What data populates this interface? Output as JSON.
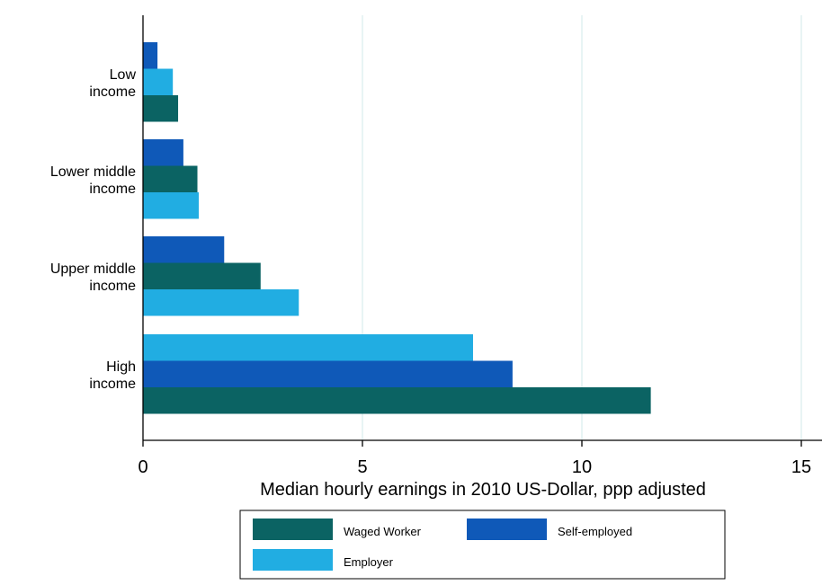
{
  "chart_data": {
    "type": "bar",
    "orientation": "horizontal",
    "title": "",
    "xlabel": "Median hourly earnings in 2010 US-Dollar, ppp adjusted",
    "ylabel": "",
    "xlim": [
      0,
      15.5
    ],
    "xticks": [
      0,
      5,
      10,
      15
    ],
    "grid": "vertical",
    "legend_position": "bottom",
    "categories": [
      {
        "label": [
          "Low",
          "income"
        ],
        "bars": [
          {
            "series": "Self-employed",
            "value": 0.33
          },
          {
            "series": "Employer",
            "value": 0.68
          },
          {
            "series": "Waged Worker",
            "value": 0.8
          }
        ]
      },
      {
        "label": [
          "Lower middle",
          "income"
        ],
        "bars": [
          {
            "series": "Self-employed",
            "value": 0.92
          },
          {
            "series": "Waged Worker",
            "value": 1.24
          },
          {
            "series": "Employer",
            "value": 1.27
          }
        ]
      },
      {
        "label": [
          "Upper middle",
          "income"
        ],
        "bars": [
          {
            "series": "Self-employed",
            "value": 1.85
          },
          {
            "series": "Waged Worker",
            "value": 2.68
          },
          {
            "series": "Employer",
            "value": 3.55
          }
        ]
      },
      {
        "label": [
          "High",
          "income"
        ],
        "bars": [
          {
            "series": "Employer",
            "value": 7.52
          },
          {
            "series": "Self-employed",
            "value": 8.42
          },
          {
            "series": "Waged Worker",
            "value": 11.57
          }
        ]
      }
    ],
    "series": [
      {
        "name": "Waged Worker",
        "color": "#0b6363"
      },
      {
        "name": "Self-employed",
        "color": "#0f59b8"
      },
      {
        "name": "Employer",
        "color": "#21ade2"
      }
    ]
  }
}
